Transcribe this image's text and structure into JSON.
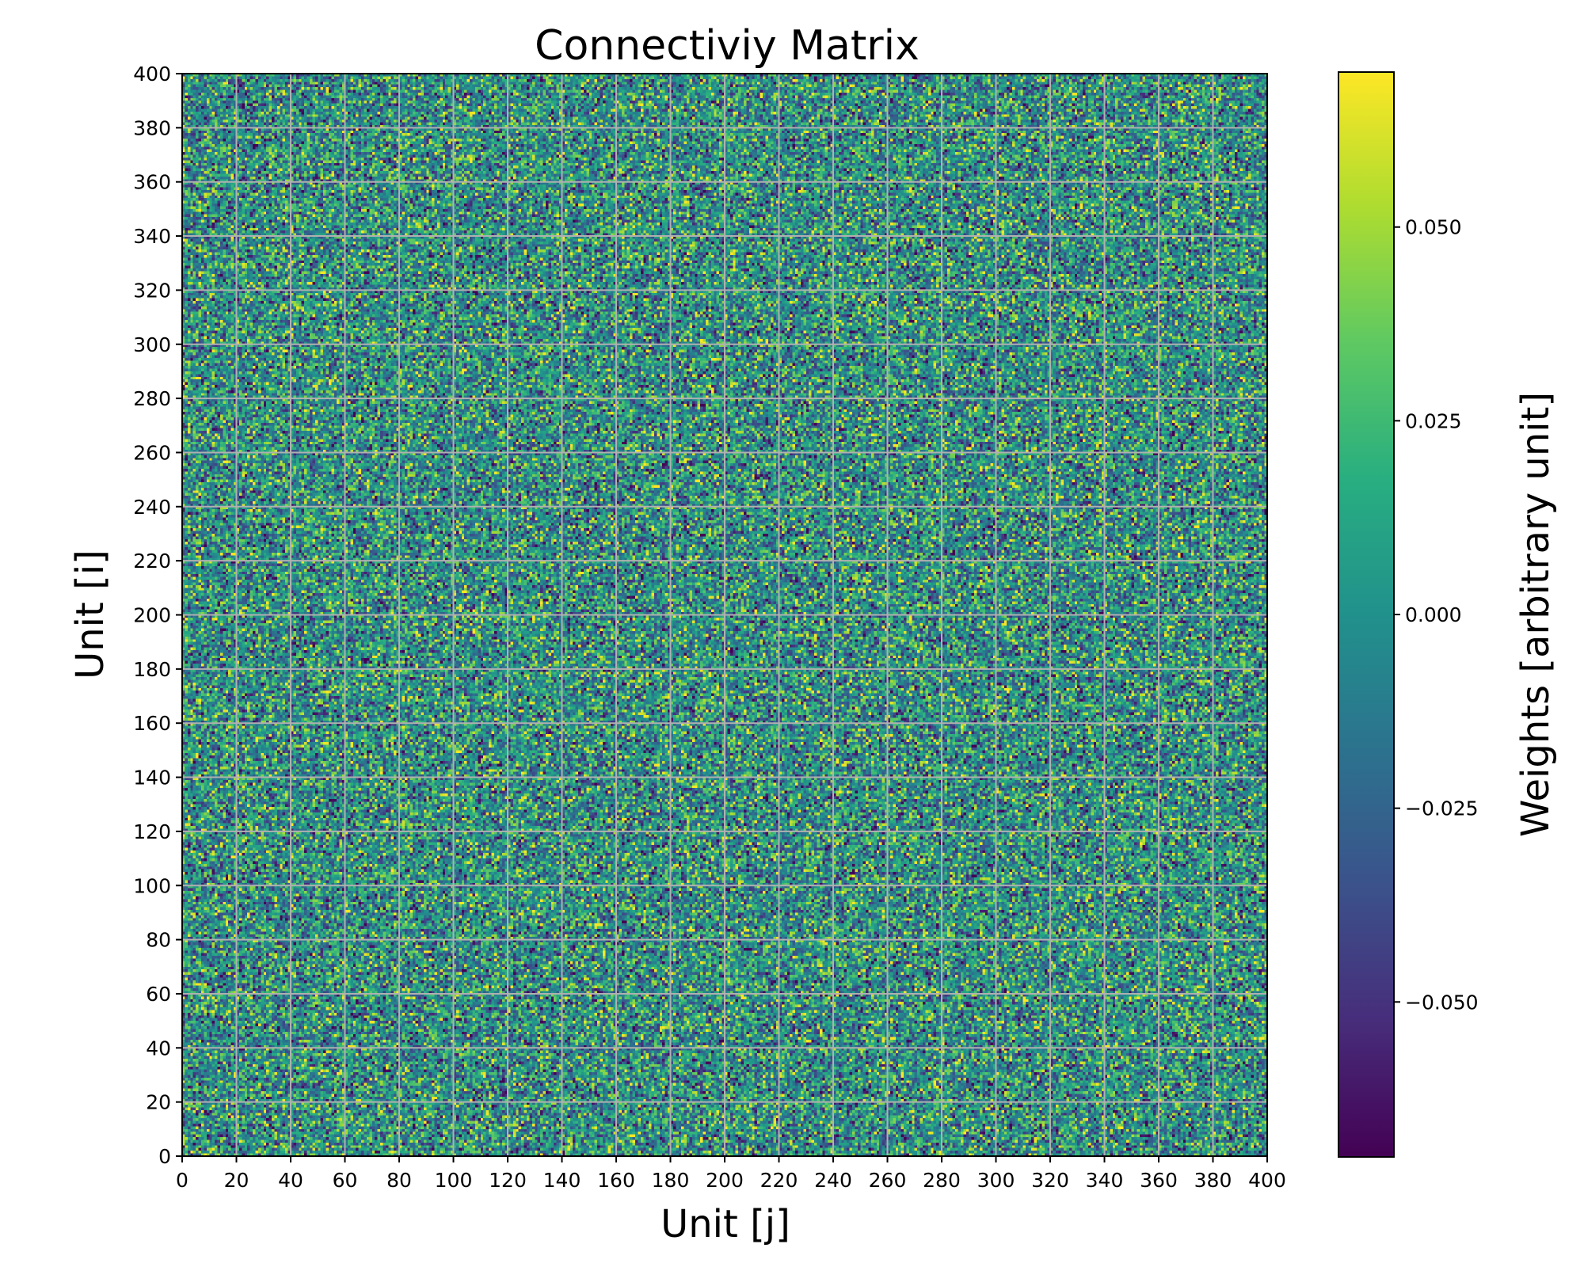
{
  "chart_data": {
    "type": "heatmap",
    "title": "Connectiviy Matrix",
    "xlabel": "Unit [j]",
    "ylabel": "Unit [i]",
    "xlim": [
      0,
      400
    ],
    "ylim": [
      0,
      400
    ],
    "x_ticks": [
      "0",
      "20",
      "40",
      "60",
      "80",
      "100",
      "120",
      "140",
      "160",
      "180",
      "200",
      "220",
      "240",
      "260",
      "280",
      "300",
      "320",
      "340",
      "360",
      "380",
      "400"
    ],
    "y_ticks": [
      "0",
      "20",
      "40",
      "60",
      "80",
      "100",
      "120",
      "140",
      "160",
      "180",
      "200",
      "220",
      "240",
      "260",
      "280",
      "300",
      "320",
      "340",
      "360",
      "380",
      "400"
    ],
    "grid": true,
    "grid_color": "#b0b0b0",
    "matrix_size": [
      400,
      400
    ],
    "value_distribution": "random weights, approximately normal, mean 0.000",
    "colormap": "viridis",
    "colorbar": {
      "label": "Weights [arbitrary unit]",
      "range": [
        -0.07,
        0.07
      ],
      "ticks": [
        -0.05,
        -0.025,
        0.0,
        0.025,
        0.05
      ],
      "tick_labels": [
        "−0.050",
        "−0.025",
        "0.000",
        "0.025",
        "0.050"
      ]
    },
    "colors": {
      "viridis_low": "#440154",
      "viridis_mid": "#21918c",
      "viridis_high": "#fde725"
    }
  }
}
